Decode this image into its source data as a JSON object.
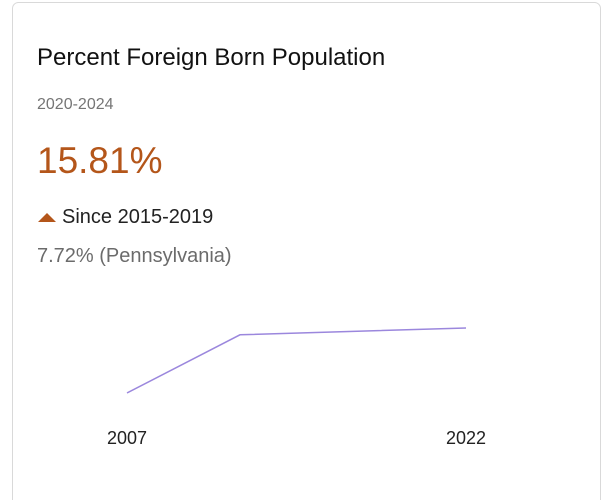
{
  "card": {
    "title": "Percent Foreign Born Population",
    "period": "2020-2024",
    "value": "15.81%",
    "change_label": "Since 2015-2019",
    "comparison": "7.72% (Pennsylvania)"
  },
  "chart_data": {
    "type": "line",
    "x": [
      2007,
      2012,
      2022
    ],
    "series": [
      {
        "color": "#9b87dd",
        "values": [
          11.0,
          15.3,
          15.8
        ]
      }
    ],
    "xlim": [
      2007,
      2022
    ],
    "xticks": [
      2007,
      2022
    ]
  }
}
